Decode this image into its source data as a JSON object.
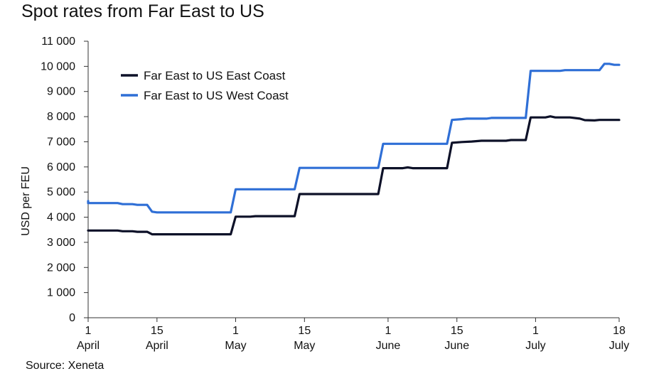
{
  "chart_data": {
    "type": "line",
    "title": "Spot rates from Far East to US",
    "xlabel": "",
    "ylabel": "USD per FEU",
    "ylim": [
      0,
      11000
    ],
    "yticks": [
      0,
      1000,
      2000,
      3000,
      4000,
      5000,
      6000,
      7000,
      8000,
      9000,
      10000,
      11000
    ],
    "ytick_labels": [
      "0",
      "1 000",
      "2 000",
      "3 000",
      "4 000",
      "5 000",
      "6 000",
      "7 000",
      "8 000",
      "9 000",
      "10 000",
      "11 000"
    ],
    "x_domain": [
      "2024-04-01",
      "2024-07-18"
    ],
    "xticks": [
      {
        "date": "2024-04-01",
        "line1": "1",
        "line2": "April"
      },
      {
        "date": "2024-04-15",
        "line1": "15",
        "line2": "April"
      },
      {
        "date": "2024-05-01",
        "line1": "1",
        "line2": "May"
      },
      {
        "date": "2024-05-15",
        "line1": "15",
        "line2": "May"
      },
      {
        "date": "2024-06-01",
        "line1": "1",
        "line2": "June"
      },
      {
        "date": "2024-06-15",
        "line1": "15",
        "line2": "June"
      },
      {
        "date": "2024-07-01",
        "line1": "1",
        "line2": "July"
      },
      {
        "date": "2024-07-18",
        "line1": "18",
        "line2": "July"
      }
    ],
    "grid": false,
    "legend_position": "top-left",
    "series": [
      {
        "name": "Far East to US East Coast",
        "color": "#0d1128",
        "points": [
          [
            "2024-04-01",
            3470
          ],
          [
            "2024-04-07",
            3470
          ],
          [
            "2024-04-08",
            3440
          ],
          [
            "2024-04-10",
            3440
          ],
          [
            "2024-04-11",
            3420
          ],
          [
            "2024-04-13",
            3420
          ],
          [
            "2024-04-14",
            3320
          ],
          [
            "2024-04-30",
            3320
          ],
          [
            "2024-05-01",
            4020
          ],
          [
            "2024-05-04",
            4020
          ],
          [
            "2024-05-05",
            4040
          ],
          [
            "2024-05-13",
            4040
          ],
          [
            "2024-05-14",
            4920
          ],
          [
            "2024-05-30",
            4920
          ],
          [
            "2024-05-31",
            5950
          ],
          [
            "2024-06-04",
            5950
          ],
          [
            "2024-06-05",
            5980
          ],
          [
            "2024-06-06",
            5950
          ],
          [
            "2024-06-13",
            5950
          ],
          [
            "2024-06-14",
            6960
          ],
          [
            "2024-06-16",
            6990
          ],
          [
            "2024-06-18",
            7010
          ],
          [
            "2024-06-20",
            7040
          ],
          [
            "2024-06-25",
            7040
          ],
          [
            "2024-06-26",
            7070
          ],
          [
            "2024-06-29",
            7070
          ],
          [
            "2024-06-30",
            7970
          ],
          [
            "2024-07-03",
            7970
          ],
          [
            "2024-07-04",
            8010
          ],
          [
            "2024-07-05",
            7970
          ],
          [
            "2024-07-08",
            7970
          ],
          [
            "2024-07-10",
            7920
          ],
          [
            "2024-07-11",
            7860
          ],
          [
            "2024-07-13",
            7850
          ],
          [
            "2024-07-14",
            7870
          ],
          [
            "2024-07-18",
            7870
          ]
        ]
      },
      {
        "name": "Far East to US West Coast",
        "color": "#2f6fd6",
        "points": [
          [
            "2024-04-01",
            4640
          ],
          [
            "2024-04-01",
            4560
          ],
          [
            "2024-04-07",
            4560
          ],
          [
            "2024-04-08",
            4520
          ],
          [
            "2024-04-10",
            4520
          ],
          [
            "2024-04-11",
            4490
          ],
          [
            "2024-04-13",
            4490
          ],
          [
            "2024-04-14",
            4220
          ],
          [
            "2024-04-15",
            4190
          ],
          [
            "2024-04-30",
            4190
          ],
          [
            "2024-05-01",
            5110
          ],
          [
            "2024-05-13",
            5110
          ],
          [
            "2024-05-14",
            5960
          ],
          [
            "2024-05-30",
            5960
          ],
          [
            "2024-05-31",
            6920
          ],
          [
            "2024-06-13",
            6920
          ],
          [
            "2024-06-14",
            7870
          ],
          [
            "2024-06-16",
            7900
          ],
          [
            "2024-06-17",
            7920
          ],
          [
            "2024-06-21",
            7920
          ],
          [
            "2024-06-22",
            7950
          ],
          [
            "2024-06-29",
            7950
          ],
          [
            "2024-06-30",
            9820
          ],
          [
            "2024-07-06",
            9820
          ],
          [
            "2024-07-07",
            9850
          ],
          [
            "2024-07-14",
            9850
          ],
          [
            "2024-07-15",
            10100
          ],
          [
            "2024-07-16",
            10100
          ],
          [
            "2024-07-17",
            10060
          ],
          [
            "2024-07-18",
            10060
          ]
        ]
      }
    ]
  },
  "source_text": "Source: Xeneta"
}
